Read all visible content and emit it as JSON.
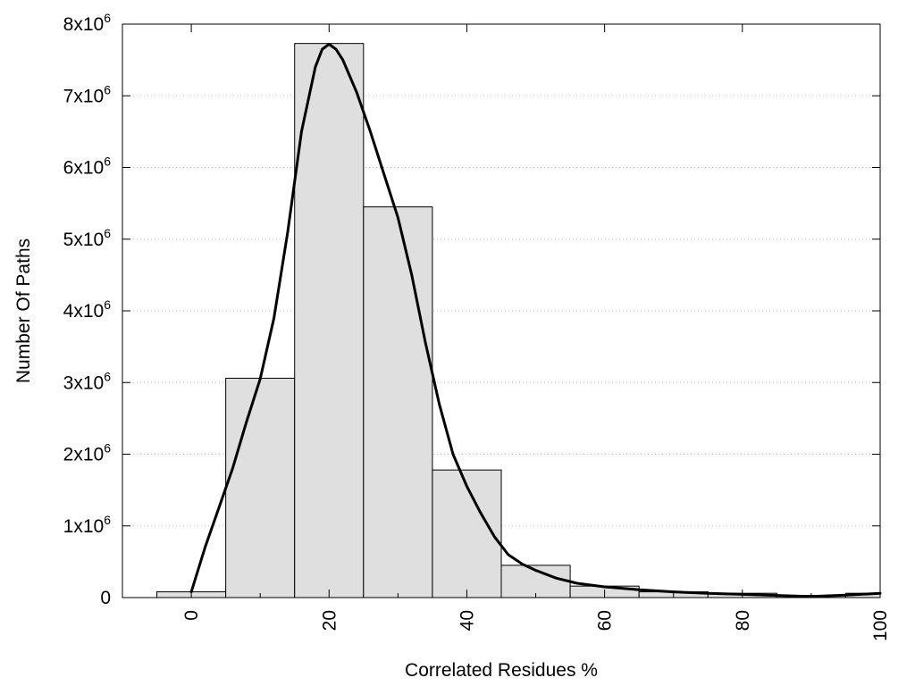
{
  "chart_data": {
    "type": "bar",
    "xlabel": "Correlated Residues %",
    "ylabel": "Number Of Paths",
    "xlim": [
      -10,
      100
    ],
    "ylim": [
      0,
      8000000
    ],
    "x_ticks": [
      0,
      20,
      40,
      60,
      80,
      100
    ],
    "x_tick_labels": [
      "0",
      "20",
      "40",
      "60",
      "80",
      "100"
    ],
    "y_ticks": [
      {
        "value": 0,
        "base": "0",
        "exp": ""
      },
      {
        "value": 1000000,
        "base": "1x10",
        "exp": "6"
      },
      {
        "value": 2000000,
        "base": "2x10",
        "exp": "6"
      },
      {
        "value": 3000000,
        "base": "3x10",
        "exp": "6"
      },
      {
        "value": 4000000,
        "base": "4x10",
        "exp": "6"
      },
      {
        "value": 5000000,
        "base": "5x10",
        "exp": "6"
      },
      {
        "value": 6000000,
        "base": "6x10",
        "exp": "6"
      },
      {
        "value": 7000000,
        "base": "7x10",
        "exp": "6"
      },
      {
        "value": 8000000,
        "base": "8x10",
        "exp": "6"
      }
    ],
    "bin_width": 10,
    "bars": [
      {
        "x": 0,
        "value": 80000
      },
      {
        "x": 10,
        "value": 3060000
      },
      {
        "x": 20,
        "value": 7730000
      },
      {
        "x": 30,
        "value": 5450000
      },
      {
        "x": 40,
        "value": 1780000
      },
      {
        "x": 50,
        "value": 450000
      },
      {
        "x": 60,
        "value": 160000
      },
      {
        "x": 70,
        "value": 80000
      },
      {
        "x": 80,
        "value": 60000
      },
      {
        "x": 90,
        "value": 30000
      },
      {
        "x": 100,
        "value": 60000
      }
    ],
    "curve": [
      [
        0,
        80000
      ],
      [
        2,
        700000
      ],
      [
        4,
        1250000
      ],
      [
        6,
        1800000
      ],
      [
        8,
        2450000
      ],
      [
        10,
        3050000
      ],
      [
        12,
        3900000
      ],
      [
        14,
        5100000
      ],
      [
        16,
        6500000
      ],
      [
        18,
        7400000
      ],
      [
        19,
        7650000
      ],
      [
        20,
        7720000
      ],
      [
        21,
        7650000
      ],
      [
        22,
        7500000
      ],
      [
        24,
        7050000
      ],
      [
        26,
        6500000
      ],
      [
        28,
        5900000
      ],
      [
        30,
        5300000
      ],
      [
        32,
        4500000
      ],
      [
        34,
        3550000
      ],
      [
        36,
        2700000
      ],
      [
        38,
        2000000
      ],
      [
        40,
        1550000
      ],
      [
        42,
        1180000
      ],
      [
        44,
        850000
      ],
      [
        46,
        600000
      ],
      [
        48,
        470000
      ],
      [
        50,
        380000
      ],
      [
        53,
        270000
      ],
      [
        56,
        200000
      ],
      [
        60,
        150000
      ],
      [
        65,
        110000
      ],
      [
        70,
        80000
      ],
      [
        75,
        60000
      ],
      [
        80,
        45000
      ],
      [
        85,
        30000
      ],
      [
        90,
        15000
      ],
      [
        95,
        35000
      ],
      [
        100,
        60000
      ]
    ],
    "bar_color": "#dfdfdf",
    "line_color": "#000000",
    "grid": true,
    "legend": "none"
  }
}
